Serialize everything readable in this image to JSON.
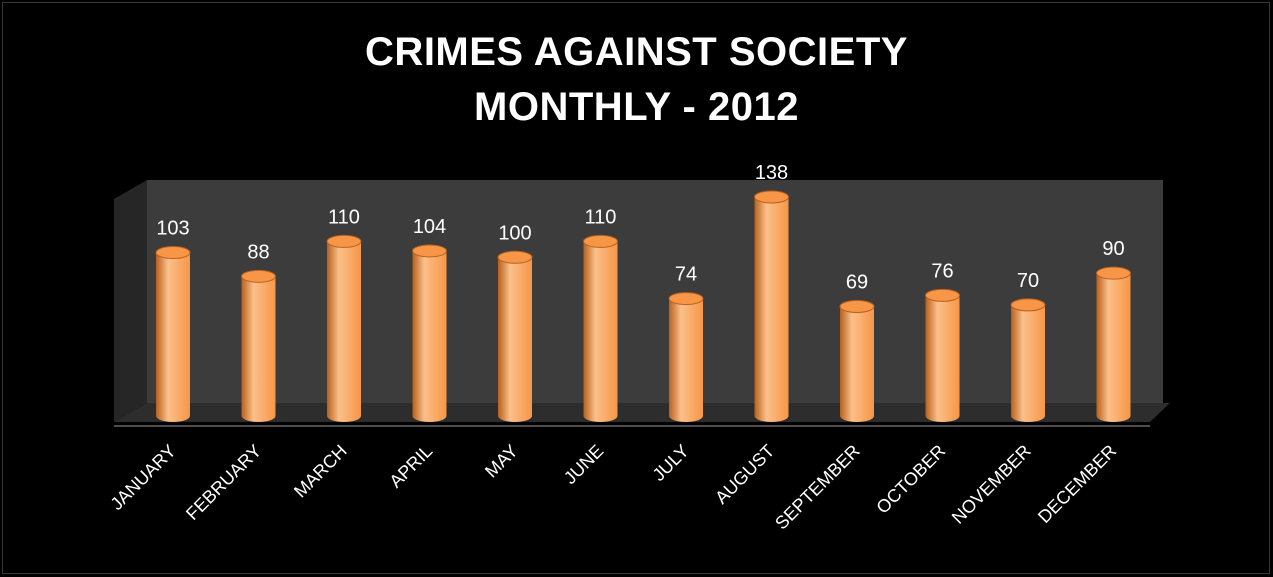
{
  "chart_data": {
    "type": "bar",
    "title_lines": [
      "CRIMES AGAINST SOCIETY",
      "MONTHLY - 2012"
    ],
    "categories": [
      "JANUARY",
      "FEBRUARY",
      "MARCH",
      "APRIL",
      "MAY",
      "JUNE",
      "JULY",
      "AUGUST",
      "SEPTEMBER",
      "OCTOBER",
      "NOVEMBER",
      "DECEMBER"
    ],
    "values": [
      103,
      88,
      110,
      104,
      100,
      110,
      74,
      138,
      69,
      76,
      70,
      90
    ],
    "data_labels": [
      "103",
      "88",
      "110",
      "104",
      "100",
      "110",
      "74",
      "138",
      "69",
      "76",
      "70",
      "90"
    ],
    "style": "3d-cylinder",
    "grid": false,
    "legend": "none",
    "colors": {
      "background": "#000000",
      "bar": "#f79646",
      "bar_highlight": "#fbc08a",
      "bar_shadow": "#b8601c",
      "back_wall": "#3c3c3c",
      "side_wall": "#262626",
      "floor": "#2d2d2d",
      "text": "#ffffff"
    }
  }
}
